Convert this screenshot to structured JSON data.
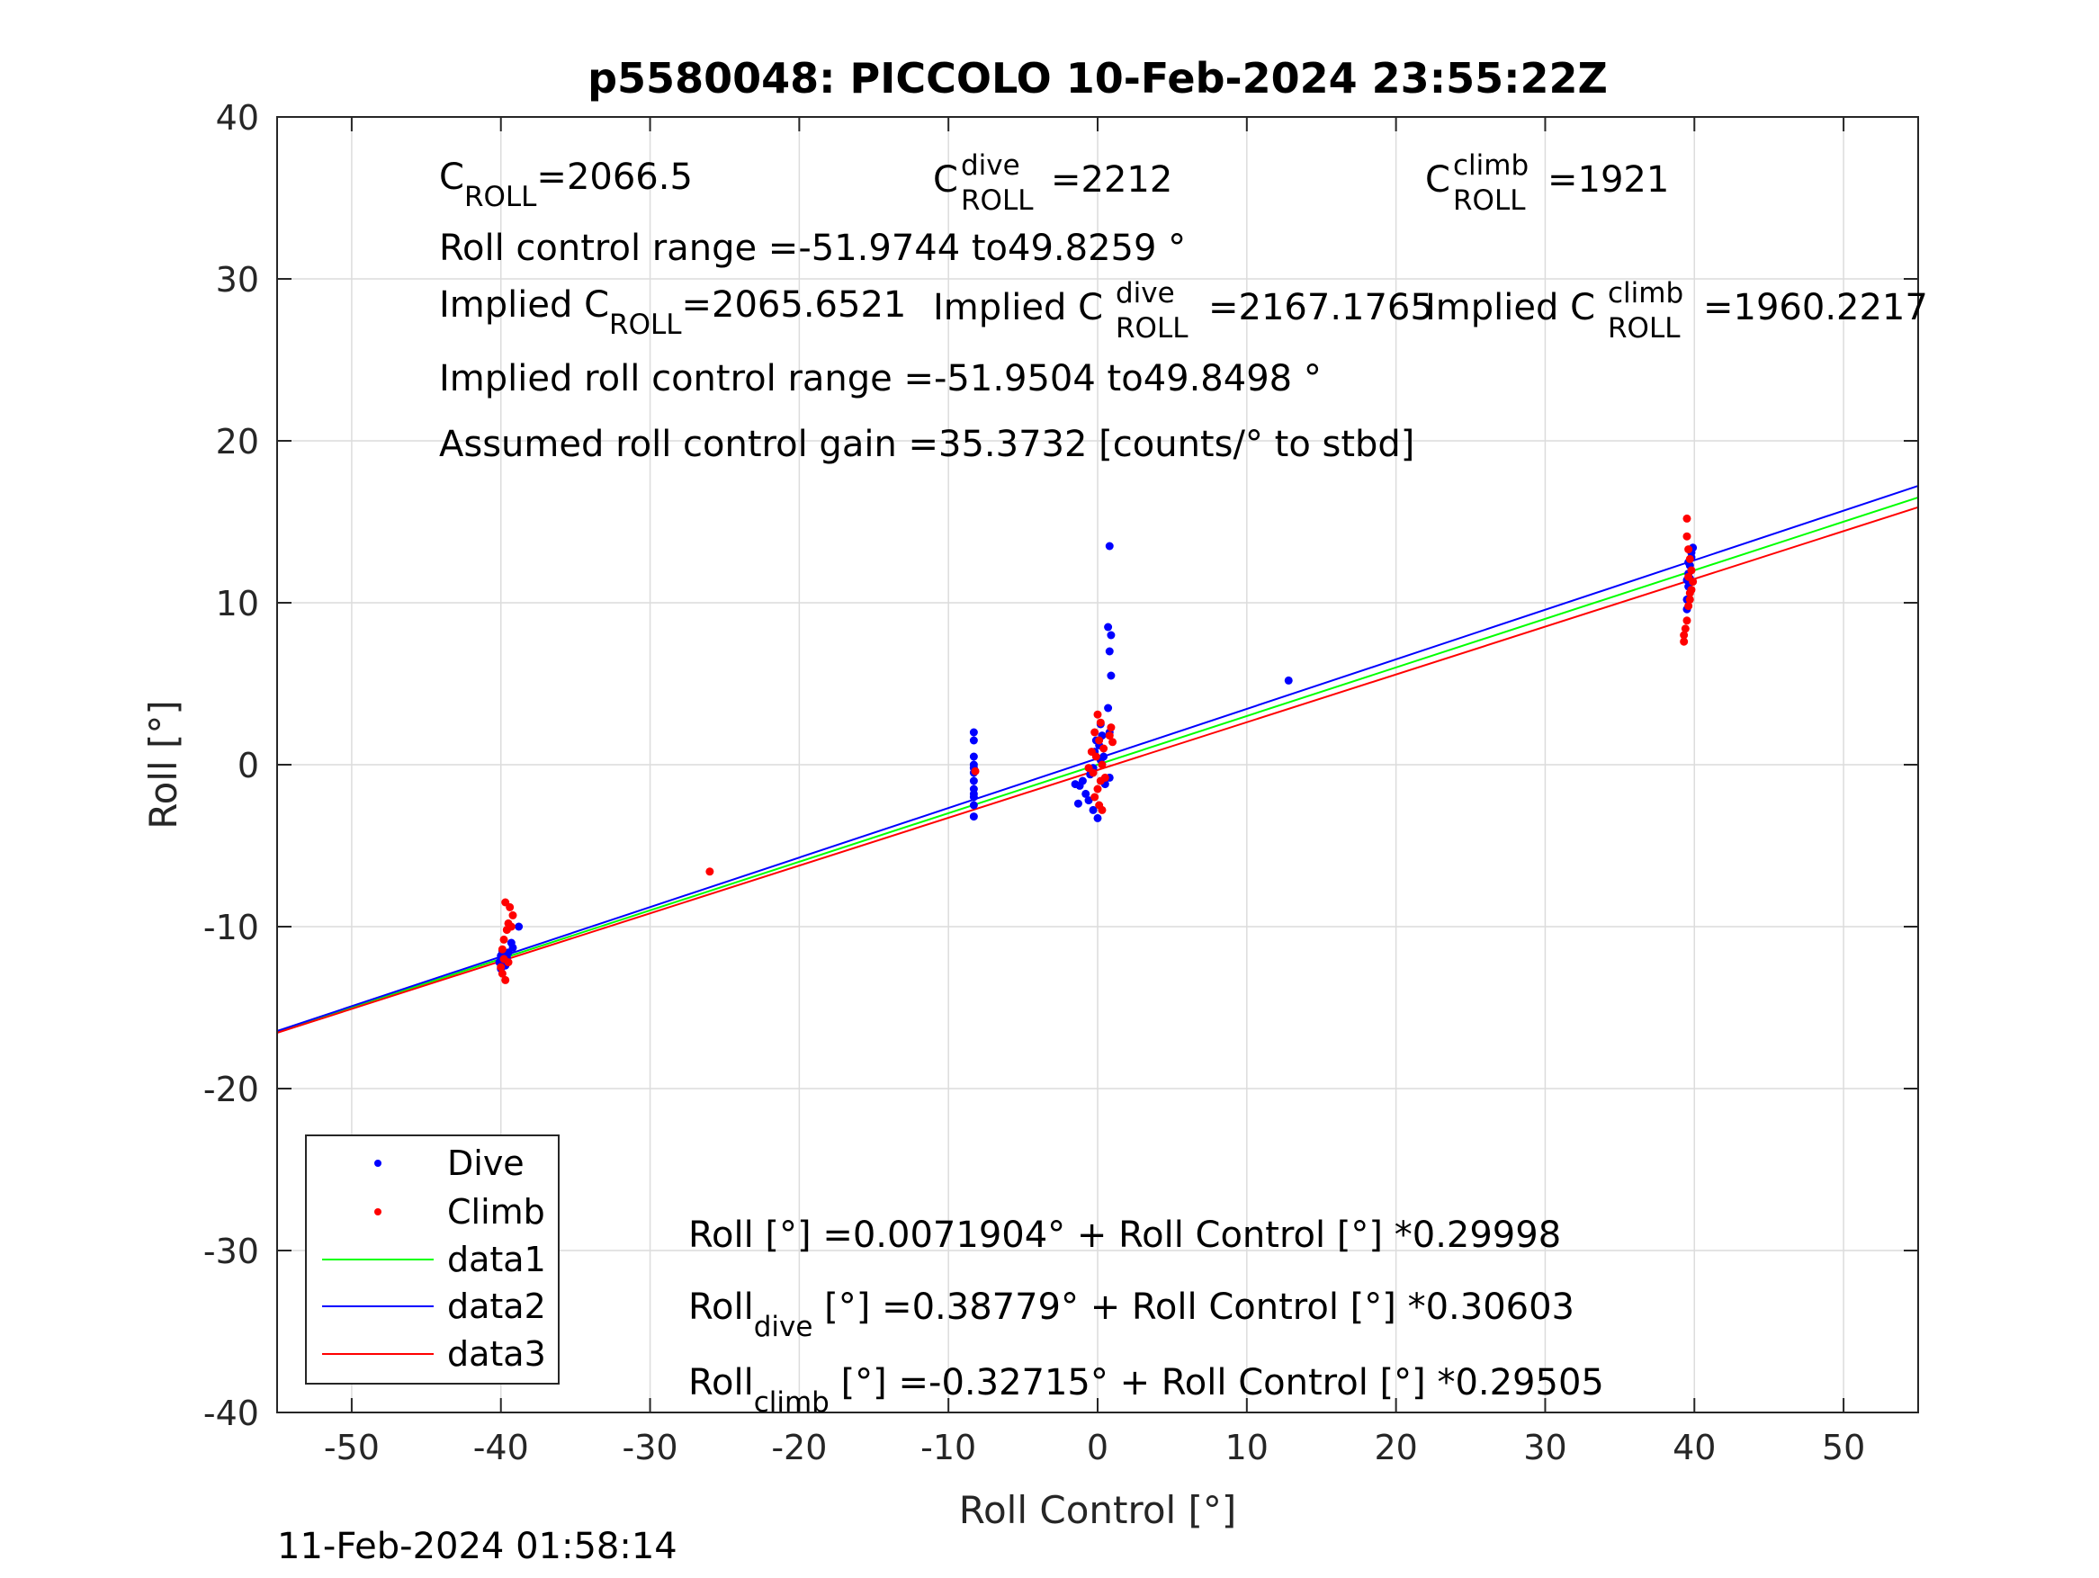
{
  "title": "p5580048: PICCOLO 10-Feb-2024 23:55:22Z",
  "timestamp": "11-Feb-2024 01:58:14",
  "annotations": {
    "c_roll": {
      "base": "C",
      "sub": "ROLL",
      "value": "=2066.5"
    },
    "c_roll_dive": {
      "base": "C",
      "sup": "dive",
      "sub": "ROLL",
      "value": "=2212"
    },
    "c_roll_climb": {
      "base": "C",
      "sup": "climb",
      "sub": "ROLL",
      "value": "=1921"
    },
    "roll_range": "Roll control range =-51.9744 to49.8259 °",
    "implied_c_roll": {
      "prefix": "Implied C",
      "sub": "ROLL",
      "value": "=2065.6521"
    },
    "implied_c_roll_dive": {
      "prefix": "Implied C",
      "sup": "dive",
      "sub": "ROLL",
      "value": "=2167.1765"
    },
    "implied_c_roll_climb": {
      "prefix": "Implied C",
      "sup": "climb",
      "sub": "ROLL",
      "value": "=1960.2217"
    },
    "implied_range": "Implied roll control range =-51.9504 to49.8498 °",
    "gain": "Assumed roll control gain =35.3732 [counts/° to stbd]",
    "fit_all": "Roll [°] =0.0071904° + Roll Control [°] *0.29998",
    "fit_dive": {
      "base": "Roll",
      "sub": "dive",
      "rest": " [°] =0.38779° + Roll Control [°] *0.30603"
    },
    "fit_climb": {
      "base": "Roll",
      "sub": "climb",
      "rest": " [°] =-0.32715° + Roll Control [°] *0.29505"
    }
  },
  "colors": {
    "dive": "#0000ff",
    "climb": "#ff0000",
    "data1": "#00ff00",
    "data2": "#0000ff",
    "data3": "#ff0000",
    "grid": "#dcdcdc"
  },
  "chart_data": {
    "type": "scatter",
    "title": "p5580048: PICCOLO 10-Feb-2024 23:55:22Z",
    "xlabel": "Roll Control [°]",
    "ylabel": "Roll [°]",
    "xlim": [
      -55,
      55
    ],
    "ylim": [
      -40,
      40
    ],
    "xticks": [
      -50,
      -40,
      -30,
      -20,
      -10,
      0,
      10,
      20,
      30,
      40,
      50
    ],
    "yticks": [
      -40,
      -30,
      -20,
      -10,
      0,
      10,
      20,
      30,
      40
    ],
    "grid": true,
    "legend_position": "bottom-left",
    "legend": [
      "Dive",
      "Climb",
      "data1",
      "data2",
      "data3"
    ],
    "series": [
      {
        "name": "Dive",
        "kind": "points",
        "color": "#0000ff",
        "points": [
          [
            -40.1,
            -12.2
          ],
          [
            -40.0,
            -11.8
          ],
          [
            -39.9,
            -11.5
          ],
          [
            -39.7,
            -12.4
          ],
          [
            -39.5,
            -11.6
          ],
          [
            -39.3,
            -11.0
          ],
          [
            -39.2,
            -11.3
          ],
          [
            -38.8,
            -10.0
          ],
          [
            -40.0,
            -12.6
          ],
          [
            -39.6,
            -11.9
          ],
          [
            -8.3,
            2.0
          ],
          [
            -8.3,
            1.5
          ],
          [
            -8.3,
            0.5
          ],
          [
            -8.3,
            0.0
          ],
          [
            -8.3,
            -0.5
          ],
          [
            -8.3,
            -1.0
          ],
          [
            -8.3,
            -1.5
          ],
          [
            -8.3,
            -2.0
          ],
          [
            -8.3,
            -2.5
          ],
          [
            -8.3,
            -3.2
          ],
          [
            -8.3,
            -1.8
          ],
          [
            -8.3,
            -0.2
          ],
          [
            0.8,
            13.5
          ],
          [
            0.7,
            8.5
          ],
          [
            0.9,
            8.0
          ],
          [
            0.8,
            7.0
          ],
          [
            0.9,
            5.5
          ],
          [
            0.7,
            3.5
          ],
          [
            0.8,
            2.0
          ],
          [
            0.3,
            1.8
          ],
          [
            0.1,
            1.2
          ],
          [
            -0.2,
            0.8
          ],
          [
            0.2,
            0.3
          ],
          [
            -0.3,
            -0.2
          ],
          [
            -0.5,
            -0.6
          ],
          [
            -1.0,
            -1.0
          ],
          [
            -1.2,
            -1.3
          ],
          [
            -1.5,
            -1.2
          ],
          [
            -0.8,
            -1.8
          ],
          [
            -0.6,
            -2.2
          ],
          [
            -1.3,
            -2.4
          ],
          [
            -0.3,
            -2.8
          ],
          [
            0.0,
            -3.3
          ],
          [
            0.5,
            -1.2
          ],
          [
            0.8,
            -0.8
          ],
          [
            0.4,
            0.5
          ],
          [
            -0.1,
            1.5
          ],
          [
            0.2,
            2.5
          ],
          [
            12.8,
            5.2
          ],
          [
            39.5,
            9.6
          ],
          [
            39.5,
            10.2
          ],
          [
            39.6,
            11.0
          ],
          [
            39.6,
            11.8
          ],
          [
            39.7,
            12.3
          ],
          [
            39.8,
            12.8
          ],
          [
            39.8,
            13.1
          ],
          [
            39.9,
            13.4
          ],
          [
            39.6,
            12.5
          ],
          [
            39.7,
            11.5
          ],
          [
            39.5,
            11.4
          ]
        ]
      },
      {
        "name": "Climb",
        "kind": "points",
        "color": "#ff0000",
        "points": [
          [
            -39.7,
            -8.5
          ],
          [
            -39.4,
            -8.8
          ],
          [
            -39.2,
            -9.3
          ],
          [
            -39.5,
            -9.8
          ],
          [
            -39.6,
            -10.2
          ],
          [
            -39.8,
            -10.8
          ],
          [
            -39.9,
            -11.4
          ],
          [
            -39.8,
            -12.0
          ],
          [
            -40.0,
            -12.5
          ],
          [
            -39.9,
            -12.9
          ],
          [
            -39.7,
            -13.3
          ],
          [
            -39.5,
            -12.2
          ],
          [
            -39.3,
            -10.0
          ],
          [
            -26.0,
            -6.6
          ],
          [
            -8.2,
            -0.4
          ],
          [
            0.0,
            3.1
          ],
          [
            0.2,
            2.6
          ],
          [
            -0.2,
            2.0
          ],
          [
            0.1,
            1.5
          ],
          [
            0.4,
            1.0
          ],
          [
            -0.1,
            0.5
          ],
          [
            0.3,
            0.0
          ],
          [
            -0.3,
            -0.5
          ],
          [
            0.2,
            -1.0
          ],
          [
            0.0,
            -1.5
          ],
          [
            -0.2,
            -2.0
          ],
          [
            0.1,
            -2.5
          ],
          [
            0.3,
            -2.8
          ],
          [
            0.8,
            1.8
          ],
          [
            1.0,
            1.4
          ],
          [
            0.9,
            2.3
          ],
          [
            -0.6,
            -0.2
          ],
          [
            0.5,
            -0.8
          ],
          [
            -0.4,
            0.8
          ],
          [
            39.5,
            15.2
          ],
          [
            39.5,
            14.1
          ],
          [
            39.6,
            13.3
          ],
          [
            39.7,
            12.7
          ],
          [
            39.8,
            12.0
          ],
          [
            39.9,
            11.3
          ],
          [
            39.8,
            10.8
          ],
          [
            39.7,
            10.2
          ],
          [
            39.6,
            9.8
          ],
          [
            39.5,
            8.9
          ],
          [
            39.4,
            8.4
          ],
          [
            39.3,
            8.0
          ],
          [
            39.3,
            7.6
          ],
          [
            39.6,
            11.6
          ],
          [
            39.7,
            10.6
          ]
        ]
      },
      {
        "name": "data1",
        "kind": "line",
        "color": "#00ff00",
        "intercept": 0.0071904,
        "slope": 0.29998
      },
      {
        "name": "data2",
        "kind": "line",
        "color": "#0000ff",
        "intercept": 0.38779,
        "slope": 0.30603
      },
      {
        "name": "data3",
        "kind": "line",
        "color": "#ff0000",
        "intercept": -0.32715,
        "slope": 0.29505
      }
    ]
  }
}
